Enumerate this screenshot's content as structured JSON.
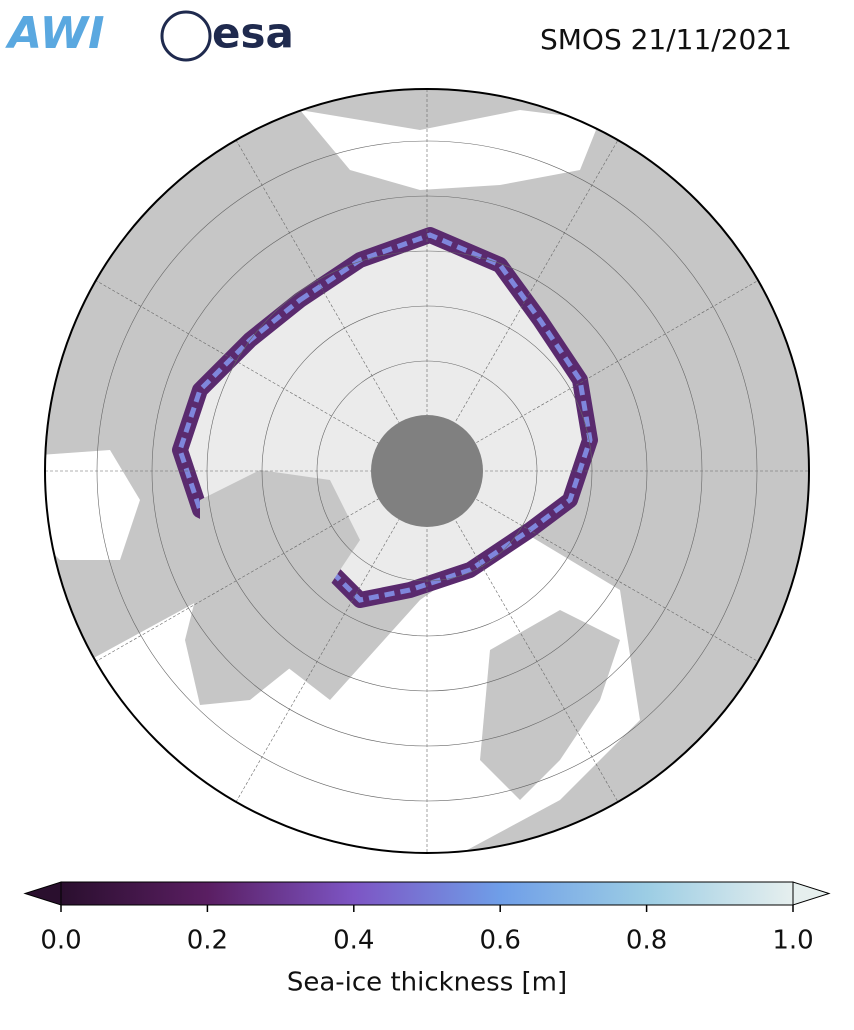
{
  "header": {
    "logos": [
      "AWI",
      "esa"
    ],
    "title": "SMOS 21/11/2021"
  },
  "colorbar": {
    "label": "Sea-ice thickness [m]",
    "lim": [
      0,
      1
    ],
    "ticks": [
      {
        "value": 0,
        "label": "0.0"
      },
      {
        "value": 0.2,
        "label": "0.2"
      },
      {
        "value": 0.4,
        "label": "0.4"
      },
      {
        "value": 0.6,
        "label": "0.6"
      },
      {
        "value": 0.8,
        "label": "0.8"
      },
      {
        "value": 1,
        "label": "1.0"
      }
    ],
    "colors": [
      "#2a0f2e",
      "#5a1e62",
      "#7d55c4",
      "#6f9ee8",
      "#9ccde4",
      "#e6efee"
    ]
  }
}
